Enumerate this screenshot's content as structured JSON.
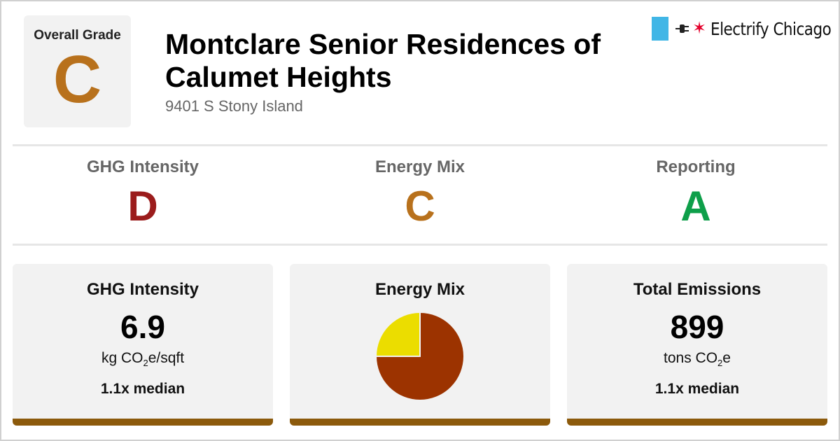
{
  "header": {
    "overall_grade_label": "Overall Grade",
    "overall_grade": "C",
    "building_name": "Montclare Senior Residences of Calumet Heights",
    "address": "9401 S Stony Island"
  },
  "logo": {
    "icons": [
      "chicago-flag-stripe-icon",
      "plug-icon",
      "red-star-icon"
    ],
    "name": "Electrify Chicago"
  },
  "colors": {
    "grade_c": "#b8711c",
    "grade_d": "#9b1c1c",
    "grade_a": "#0e9f4a",
    "card_bar": "#8c5a0c",
    "pie_large": "#9c3300",
    "pie_small": "#ebdd00"
  },
  "grades": [
    {
      "label": "GHG Intensity",
      "grade": "D",
      "color": "#9b1c1c"
    },
    {
      "label": "Energy Mix",
      "grade": "C",
      "color": "#b8711c"
    },
    {
      "label": "Reporting",
      "grade": "A",
      "color": "#0e9f4a"
    }
  ],
  "cards": {
    "ghg": {
      "heading": "GHG Intensity",
      "value": "6.9",
      "unit_prefix": "kg CO",
      "unit_sub": "2",
      "unit_suffix": "e/sqft",
      "median": "1.1x median"
    },
    "mix": {
      "heading": "Energy Mix"
    },
    "emissions": {
      "heading": "Total Emissions",
      "value": "899",
      "unit_prefix": "tons CO",
      "unit_sub": "2",
      "unit_suffix": "e",
      "median": "1.1x median"
    }
  },
  "chart_data": {
    "type": "pie",
    "slices": [
      {
        "value": 75,
        "color": "#9c3300"
      },
      {
        "value": 25,
        "color": "#ebdd00"
      }
    ]
  }
}
